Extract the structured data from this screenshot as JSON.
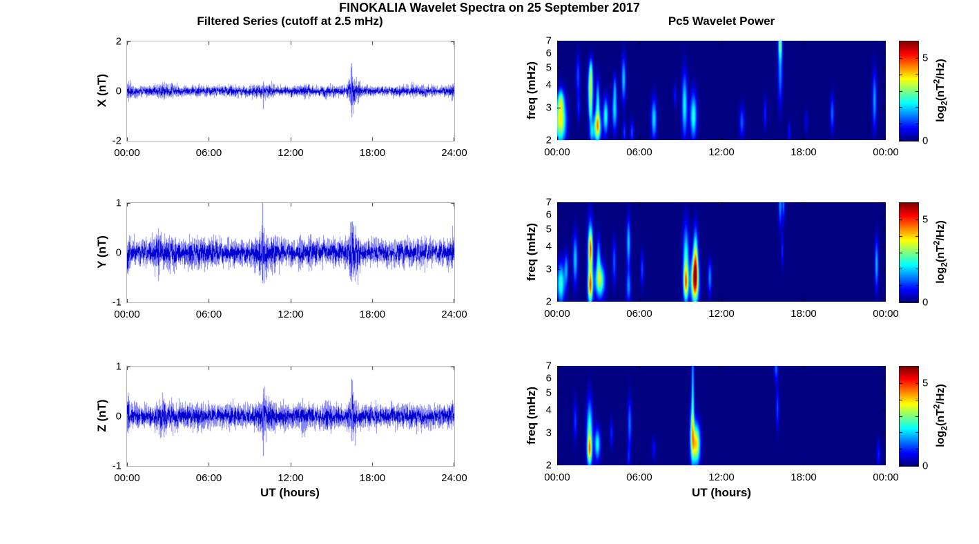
{
  "figure": {
    "title": "FINOKALIA Wavelet Spectra on 25 September 2017"
  },
  "left_column": {
    "title": "Filtered Series (cutoff at 2.5 mHz)",
    "xlabel": "UT (hours)"
  },
  "right_column": {
    "title": "Pc5 Wavelet Power",
    "xlabel": "UT (hours)"
  },
  "colorbar_label": {
    "p1": "log",
    "sub": "2",
    "p2": "(nT",
    "sup": "2",
    "p3": "/Hz)"
  },
  "colors": {
    "trace": "#0f0fe8",
    "trace_core": "#0000d2",
    "spike": "#5050ff",
    "background": "#ffffff",
    "frame": "#b3b3b3",
    "tick": "#333333",
    "jet_min": "#000080",
    "jet_max": "#7f0000"
  },
  "chart_data": [
    {
      "type": "line",
      "id": "x-filtered-series",
      "ylabel": "X (nT)",
      "ylim": [
        -2,
        2
      ],
      "ytick_values": [
        -2,
        0,
        2
      ],
      "ytick_labels": [
        "-2",
        "0",
        "2"
      ],
      "x_range_hours": [
        0,
        24
      ],
      "xtick_hours": [
        0,
        6,
        12,
        18,
        24
      ],
      "xtick_labels": [
        "00:00",
        "06:00",
        "12:00",
        "18:00",
        "24:00"
      ],
      "noise": {
        "seed": 11,
        "base": 0.105,
        "bursts": [
          [
            0.08,
            0.12,
            1.2
          ],
          [
            2.6,
            0.35,
            0.5
          ],
          [
            3.4,
            0.3,
            0.45
          ],
          [
            7.9,
            0.4,
            0.25
          ],
          [
            9.6,
            0.3,
            0.5
          ],
          [
            10.4,
            0.3,
            0.35
          ],
          [
            12.9,
            0.3,
            0.45
          ],
          [
            14.8,
            0.3,
            0.3
          ],
          [
            16.55,
            0.18,
            2.6
          ],
          [
            16.95,
            0.12,
            0.9
          ],
          [
            21.0,
            0.3,
            0.2
          ],
          [
            23.9,
            0.08,
            0.9
          ]
        ],
        "spikes": [
          [
            10.0,
            -0.72,
            0.38
          ],
          [
            16.5,
            -0.88,
            1.12
          ],
          [
            16.42,
            -0.55,
            0.95
          ]
        ]
      }
    },
    {
      "type": "heatmap",
      "id": "x-wavelet-power",
      "ylabel": "freq (mHz)",
      "f_range_mhz": [
        2,
        7
      ],
      "log_scale": true,
      "ytick_values": [
        2,
        3,
        4,
        5,
        6,
        7
      ],
      "x_range_hours": [
        0,
        24
      ],
      "xtick_hours": [
        0,
        6,
        12,
        18,
        24
      ],
      "xtick_labels": [
        "00:00",
        "06:00",
        "12:00",
        "18:00",
        "00:00"
      ],
      "vmax": 6,
      "colorbar": {
        "ticks": [
          {
            "v": 0,
            "label": "0"
          },
          {
            "v": 5,
            "label": "5"
          }
        ],
        "minor_ticks": [
          0,
          1,
          2,
          3,
          4,
          5
        ]
      },
      "blobs": [
        [
          0.22,
          2.55,
          3.8,
          0.28,
          0.2
        ],
        [
          0.25,
          3.3,
          1.8,
          0.15,
          0.1
        ],
        [
          1.5,
          4.5,
          1.2,
          0.1,
          0.18
        ],
        [
          1.55,
          3.0,
          0.9,
          0.08,
          0.12
        ],
        [
          2.42,
          3.9,
          3.4,
          0.13,
          0.18
        ],
        [
          2.42,
          2.9,
          2.0,
          0.1,
          0.12
        ],
        [
          2.45,
          4.9,
          1.4,
          0.08,
          0.1
        ],
        [
          2.5,
          2.2,
          1.8,
          0.12,
          0.1
        ],
        [
          2.92,
          2.35,
          3.9,
          0.18,
          0.13
        ],
        [
          2.95,
          3.2,
          2.2,
          0.1,
          0.2
        ],
        [
          3.53,
          2.7,
          2.5,
          0.13,
          0.16
        ],
        [
          4.18,
          2.9,
          2.1,
          0.13,
          0.18
        ],
        [
          4.2,
          3.9,
          1.2,
          0.08,
          0.12
        ],
        [
          4.84,
          4.3,
          2.0,
          0.11,
          0.2
        ],
        [
          4.9,
          2.2,
          1.1,
          0.08,
          0.1
        ],
        [
          5.45,
          2.2,
          1.2,
          0.1,
          0.1
        ],
        [
          7.06,
          2.6,
          2.1,
          0.14,
          0.18
        ],
        [
          8.6,
          3.5,
          0.9,
          0.08,
          0.1
        ],
        [
          9.3,
          3.1,
          2.3,
          0.14,
          0.28
        ],
        [
          9.95,
          2.7,
          2.5,
          0.17,
          0.2
        ],
        [
          13.5,
          2.5,
          1.3,
          0.13,
          0.14
        ],
        [
          15.2,
          2.8,
          1.0,
          0.08,
          0.14
        ],
        [
          16.3,
          6.8,
          2.4,
          0.1,
          0.13
        ],
        [
          16.3,
          4.8,
          1.6,
          0.12,
          0.3
        ],
        [
          16.95,
          2.2,
          0.8,
          0.08,
          0.1
        ],
        [
          18.2,
          2.5,
          0.7,
          0.08,
          0.1
        ],
        [
          20.1,
          2.8,
          1.4,
          0.1,
          0.16
        ],
        [
          23.2,
          3.3,
          1.7,
          0.11,
          0.26
        ]
      ]
    },
    {
      "type": "line",
      "id": "y-filtered-series",
      "ylabel": "Y (nT)",
      "ylim": [
        -1,
        1
      ],
      "ytick_values": [
        -1,
        0,
        1
      ],
      "ytick_labels": [
        "-1",
        "0",
        "1"
      ],
      "x_range_hours": [
        0,
        24
      ],
      "xtick_hours": [
        0,
        6,
        12,
        18,
        24
      ],
      "xtick_labels": [
        "00:00",
        "06:00",
        "12:00",
        "18:00",
        "24:00"
      ],
      "noise": {
        "seed": 22,
        "base": 0.13,
        "bursts": [
          [
            0.08,
            0.12,
            0.9
          ],
          [
            2.3,
            0.25,
            0.55
          ],
          [
            3.3,
            0.3,
            0.35
          ],
          [
            5.0,
            0.4,
            0.25
          ],
          [
            6.5,
            0.5,
            0.2
          ],
          [
            9.9,
            0.3,
            0.9
          ],
          [
            10.5,
            0.3,
            0.4
          ],
          [
            13.0,
            0.4,
            0.25
          ],
          [
            16.5,
            0.2,
            1.1
          ],
          [
            16.9,
            0.15,
            0.6
          ],
          [
            21.5,
            0.4,
            0.2
          ],
          [
            23.9,
            0.08,
            0.6
          ]
        ],
        "spikes": [
          [
            9.95,
            -0.35,
            1.0
          ],
          [
            10.05,
            -0.62,
            0.5
          ],
          [
            2.35,
            -0.45,
            0.28
          ],
          [
            16.5,
            -0.58,
            0.62
          ]
        ]
      }
    },
    {
      "type": "heatmap",
      "id": "y-wavelet-power",
      "ylabel": "freq (mHz)",
      "f_range_mhz": [
        2,
        7
      ],
      "log_scale": true,
      "ytick_values": [
        2,
        3,
        4,
        5,
        6,
        7
      ],
      "x_range_hours": [
        0,
        24
      ],
      "xtick_hours": [
        0,
        6,
        12,
        18,
        24
      ],
      "xtick_labels": [
        "00:00",
        "06:00",
        "12:00",
        "18:00",
        "00:00"
      ],
      "vmax": 6,
      "colorbar": {
        "ticks": [
          {
            "v": 0,
            "label": "0"
          },
          {
            "v": 5,
            "label": "5"
          }
        ],
        "minor_ticks": [
          0,
          1,
          2,
          3,
          4,
          5
        ]
      },
      "blobs": [
        [
          0.25,
          2.5,
          2.6,
          0.2,
          0.18
        ],
        [
          0.65,
          3.0,
          1.6,
          0.1,
          0.15
        ],
        [
          1.3,
          3.4,
          2.0,
          0.12,
          0.22
        ],
        [
          2.4,
          3.3,
          2.8,
          0.14,
          0.35
        ],
        [
          2.4,
          2.4,
          3.0,
          0.12,
          0.13
        ],
        [
          2.42,
          4.0,
          2.4,
          0.1,
          0.15
        ],
        [
          3.1,
          2.6,
          3.2,
          0.25,
          0.15
        ],
        [
          3.0,
          3.5,
          1.8,
          0.1,
          0.18
        ],
        [
          4.15,
          3.3,
          1.3,
          0.1,
          0.2
        ],
        [
          5.2,
          4.2,
          2.0,
          0.1,
          0.22
        ],
        [
          5.2,
          2.4,
          1.6,
          0.12,
          0.14
        ],
        [
          6.2,
          3.0,
          1.2,
          0.08,
          0.15
        ],
        [
          9.4,
          3.4,
          2.5,
          0.15,
          0.3
        ],
        [
          9.4,
          2.5,
          3.3,
          0.13,
          0.15
        ],
        [
          10.05,
          2.6,
          4.9,
          0.2,
          0.2
        ],
        [
          10.1,
          3.5,
          3.0,
          0.12,
          0.25
        ],
        [
          11.15,
          2.7,
          1.6,
          0.1,
          0.15
        ],
        [
          16.3,
          6.9,
          1.7,
          0.09,
          0.2
        ],
        [
          16.55,
          6.9,
          1.4,
          0.07,
          0.15
        ],
        [
          16.45,
          3.8,
          1.0,
          0.06,
          0.15
        ],
        [
          23.35,
          3.2,
          1.9,
          0.09,
          0.22
        ]
      ]
    },
    {
      "type": "line",
      "id": "z-filtered-series",
      "ylabel": "Z (nT)",
      "ylim": [
        -1,
        1
      ],
      "ytick_values": [
        -1,
        0,
        1
      ],
      "ytick_labels": [
        "-1",
        "0",
        "1"
      ],
      "x_range_hours": [
        0,
        24
      ],
      "xtick_hours": [
        0,
        6,
        12,
        18,
        24
      ],
      "xtick_labels": [
        "00:00",
        "06:00",
        "12:00",
        "18:00",
        "24:00"
      ],
      "noise": {
        "seed": 33,
        "base": 0.115,
        "bursts": [
          [
            0.08,
            0.12,
            0.8
          ],
          [
            2.6,
            0.3,
            0.6
          ],
          [
            3.4,
            0.3,
            0.3
          ],
          [
            5.3,
            0.4,
            0.2
          ],
          [
            7.5,
            0.4,
            0.2
          ],
          [
            9.9,
            0.25,
            0.8
          ],
          [
            10.4,
            0.3,
            0.45
          ],
          [
            13.1,
            0.4,
            0.3
          ],
          [
            14.9,
            0.3,
            0.35
          ],
          [
            16.55,
            0.2,
            1.6
          ],
          [
            21.0,
            0.4,
            0.2
          ],
          [
            23.9,
            0.08,
            0.5
          ]
        ],
        "spikes": [
          [
            10.0,
            -0.8,
            0.45
          ],
          [
            2.7,
            -0.42,
            0.35
          ],
          [
            16.5,
            -0.5,
            0.75
          ]
        ]
      }
    },
    {
      "type": "heatmap",
      "id": "z-wavelet-power",
      "ylabel": "freq (mHz)",
      "f_range_mhz": [
        2,
        7
      ],
      "log_scale": true,
      "ytick_values": [
        2,
        3,
        4,
        5,
        6,
        7
      ],
      "x_range_hours": [
        0,
        24
      ],
      "xtick_hours": [
        0,
        6,
        12,
        18,
        24
      ],
      "xtick_labels": [
        "00:00",
        "06:00",
        "12:00",
        "18:00",
        "00:00"
      ],
      "vmax": 6,
      "colorbar": {
        "ticks": [
          {
            "v": 0,
            "label": "0"
          },
          {
            "v": 5,
            "label": "5"
          }
        ],
        "minor_ticks": [
          0,
          1,
          2,
          3,
          4,
          5
        ]
      },
      "blobs": [
        [
          1.3,
          3.5,
          1.1,
          0.09,
          0.18
        ],
        [
          2.35,
          3.0,
          2.8,
          0.15,
          0.28
        ],
        [
          2.35,
          2.4,
          2.6,
          0.12,
          0.12
        ],
        [
          2.92,
          2.6,
          2.4,
          0.15,
          0.14
        ],
        [
          3.95,
          3.0,
          1.0,
          0.08,
          0.12
        ],
        [
          5.28,
          3.4,
          1.5,
          0.1,
          0.22
        ],
        [
          5.2,
          2.2,
          0.9,
          0.08,
          0.1
        ],
        [
          7.05,
          2.45,
          0.8,
          0.1,
          0.1
        ],
        [
          9.9,
          5.0,
          2.0,
          0.07,
          0.5
        ],
        [
          9.85,
          3.0,
          2.3,
          0.12,
          0.25
        ],
        [
          10.15,
          2.6,
          4.0,
          0.2,
          0.18
        ],
        [
          16.0,
          6.9,
          1.4,
          0.1,
          0.12
        ],
        [
          16.1,
          4.1,
          1.2,
          0.08,
          0.18
        ],
        [
          23.5,
          2.3,
          0.9,
          0.1,
          0.12
        ]
      ]
    }
  ]
}
